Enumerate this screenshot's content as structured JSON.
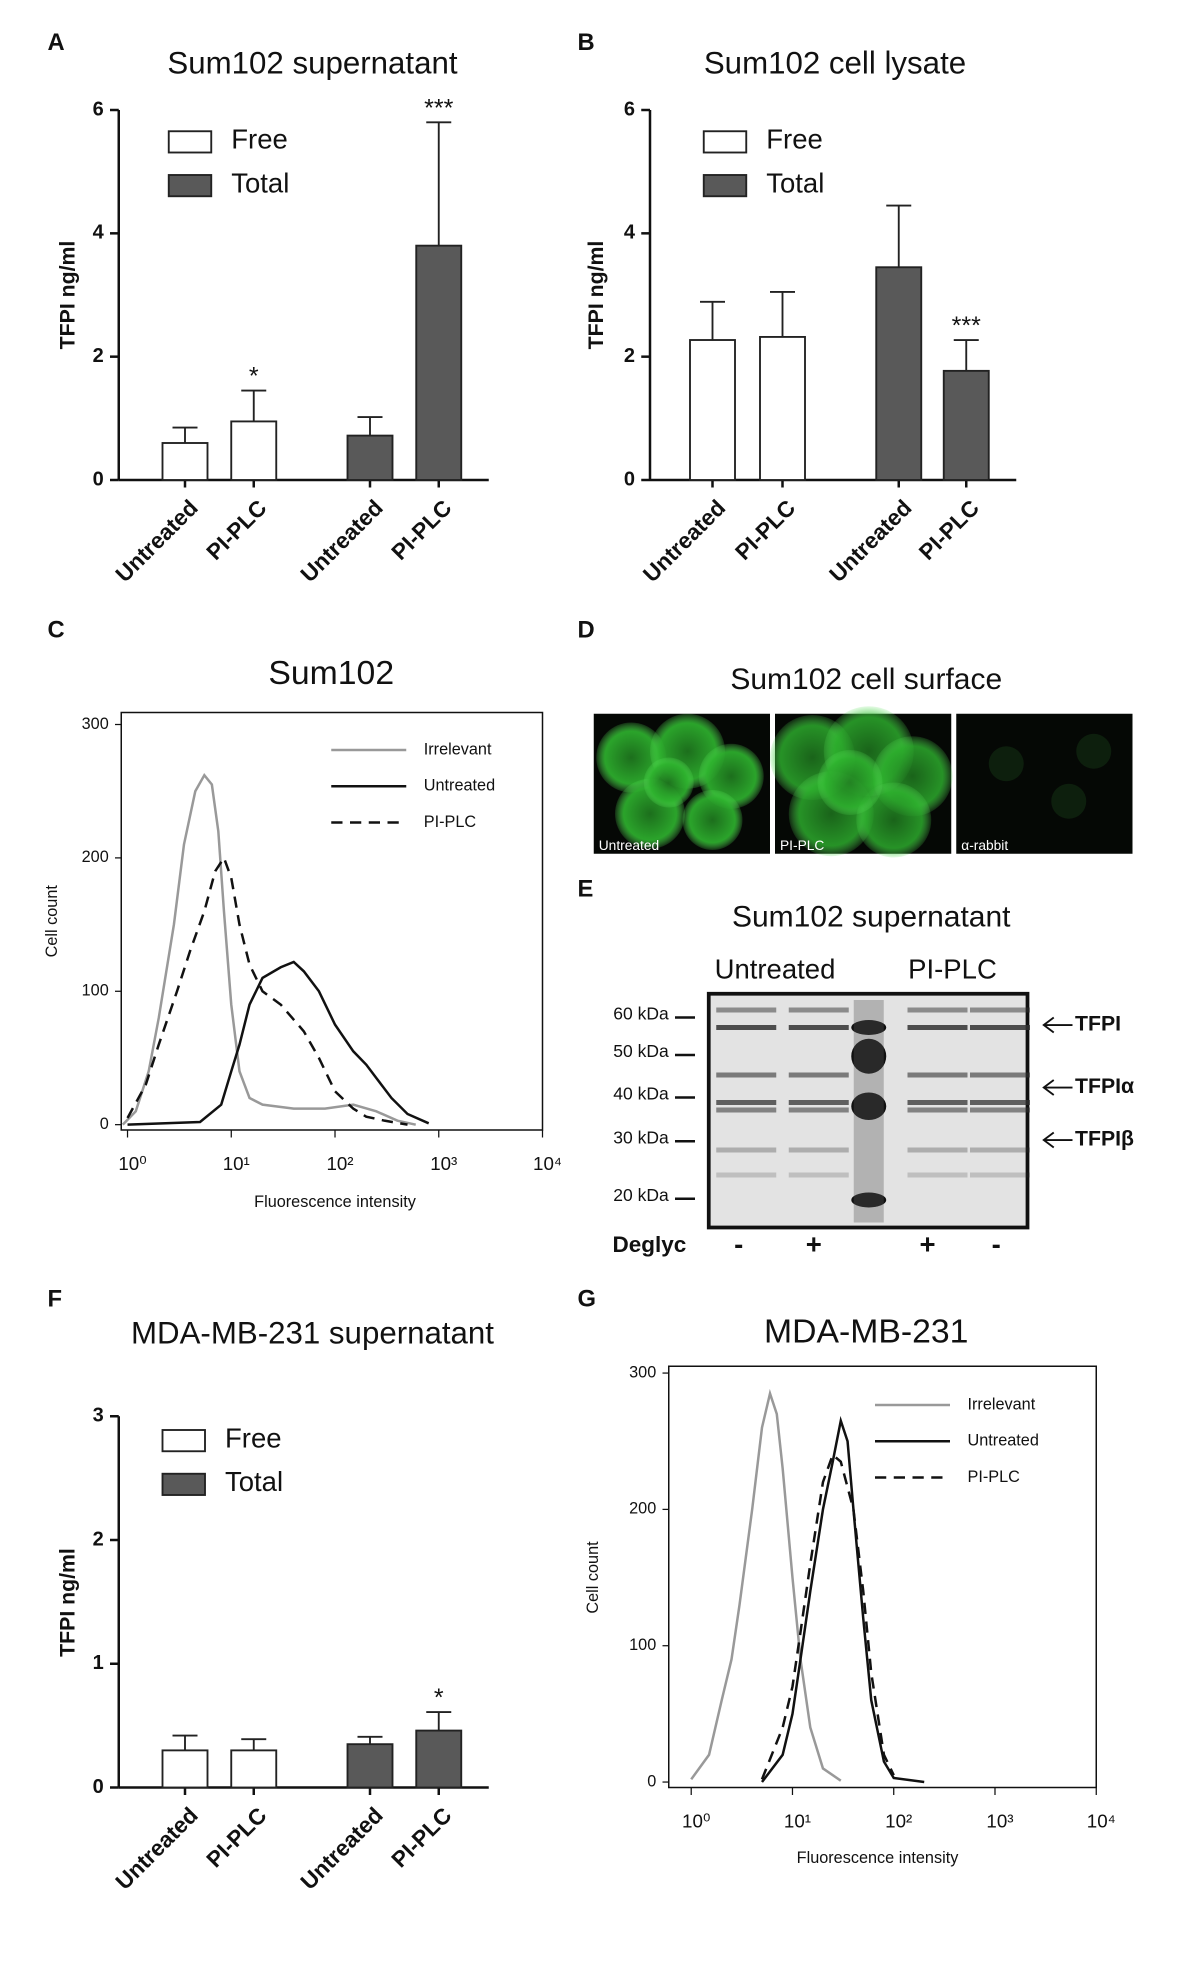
{
  "chart_data": [
    {
      "type": "bar",
      "panel_label": "A",
      "title": "Sum102 supernatant",
      "y_label": "TFPI ng/ml",
      "categories": [
        "Untreated",
        "PI-PLC",
        "Untreated",
        "PI-PLC"
      ],
      "series": [
        {
          "name": "Free",
          "color": "#ffffff",
          "values": [
            0.6,
            0.95,
            null,
            null
          ],
          "errors": [
            0.25,
            0.5,
            null,
            null
          ],
          "significance": [
            null,
            "*",
            null,
            null
          ]
        },
        {
          "name": "Total",
          "color": "#595959",
          "values": [
            null,
            null,
            0.72,
            3.8
          ],
          "errors": [
            null,
            null,
            0.3,
            2.0
          ],
          "significance": [
            null,
            null,
            null,
            "***"
          ]
        }
      ],
      "ylim": [
        0,
        6
      ],
      "yticks": [
        0,
        2,
        4,
        6
      ],
      "legend": "upper left"
    },
    {
      "type": "bar",
      "panel_label": "B",
      "title": "Sum102 cell lysate",
      "y_label": "TFPI ng/ml",
      "categories": [
        "Untreated",
        "PI-PLC",
        "Untreated",
        "PI-PLC"
      ],
      "series": [
        {
          "name": "Free",
          "color": "#ffffff",
          "values": [
            2.27,
            2.32,
            null,
            null
          ],
          "errors": [
            0.62,
            0.73,
            null,
            null
          ],
          "significance": [
            null,
            null,
            null,
            null
          ]
        },
        {
          "name": "Total",
          "color": "#595959",
          "values": [
            null,
            null,
            3.45,
            1.77
          ],
          "errors": [
            null,
            null,
            1.0,
            0.5
          ],
          "significance": [
            null,
            null,
            null,
            "***"
          ]
        }
      ],
      "ylim": [
        0,
        6
      ],
      "yticks": [
        0,
        2,
        4,
        6
      ],
      "legend": "upper left"
    },
    {
      "type": "line",
      "panel_label": "C",
      "title": "Sum102",
      "x_label": "Fluorescence intensity",
      "y_label": "Cell count",
      "xscale": "log",
      "xlim": [
        0.87,
        10000
      ],
      "xticks": [
        {
          "value": 1,
          "label": "10⁰"
        },
        {
          "value": 10,
          "label": "10¹"
        },
        {
          "value": 100,
          "label": "10²"
        },
        {
          "value": 1000,
          "label": "10³"
        },
        {
          "value": 10000,
          "label": "10⁴"
        }
      ],
      "ylim": [
        -4,
        309
      ],
      "yticks": [
        0,
        100,
        200,
        300
      ],
      "legend": "upper right",
      "series": [
        {
          "name": "Irrelevant",
          "color": "#999999",
          "line_style": "solid",
          "x": [
            0.9,
            1.2,
            1.6,
            2,
            2.8,
            3.5,
            4.5,
            5.5,
            6.5,
            7.5,
            8.5,
            10,
            12,
            15,
            20,
            40,
            80,
            150,
            250,
            400,
            600
          ],
          "values": [
            0,
            10,
            40,
            80,
            150,
            210,
            250,
            262,
            255,
            220,
            160,
            90,
            40,
            20,
            15,
            12,
            12,
            15,
            10,
            3,
            0
          ]
        },
        {
          "name": "Untreated",
          "color": "#111111",
          "line_style": "solid",
          "x": [
            1,
            5,
            8,
            10,
            12,
            15,
            20,
            30,
            40,
            50,
            70,
            100,
            150,
            200,
            250,
            350,
            500,
            800
          ],
          "values": [
            0,
            2,
            15,
            40,
            60,
            90,
            110,
            118,
            122,
            115,
            100,
            75,
            55,
            45,
            35,
            20,
            8,
            1
          ]
        },
        {
          "name": "PI-PLC",
          "color": "#111111",
          "line_style": "dashed",
          "x": [
            1,
            1.5,
            2,
            3,
            4,
            5.5,
            7,
            8.5,
            10,
            12,
            15,
            20,
            30,
            50,
            70,
            100,
            150,
            200,
            300,
            500
          ],
          "values": [
            5,
            30,
            60,
            100,
            130,
            160,
            190,
            200,
            185,
            150,
            120,
            100,
            90,
            70,
            50,
            25,
            12,
            6,
            3,
            0
          ]
        }
      ]
    },
    {
      "type": "bar",
      "panel_label": "F",
      "title": "MDA-MB-231 supernatant",
      "y_label": "TFPI ng/ml",
      "categories": [
        "Untreated",
        "PI-PLC",
        "Untreated",
        "PI-PLC"
      ],
      "series": [
        {
          "name": "Free",
          "color": "#ffffff",
          "values": [
            0.3,
            0.3,
            null,
            null
          ],
          "errors": [
            0.12,
            0.09,
            null,
            null
          ],
          "significance": [
            null,
            null,
            null,
            null
          ]
        },
        {
          "name": "Total",
          "color": "#595959",
          "values": [
            null,
            null,
            0.35,
            0.46
          ],
          "errors": [
            null,
            null,
            0.06,
            0.15
          ],
          "significance": [
            null,
            null,
            null,
            "*"
          ]
        }
      ],
      "ylim": [
        0,
        3
      ],
      "yticks": [
        0,
        1,
        2,
        3
      ],
      "legend": "upper left"
    },
    {
      "type": "line",
      "panel_label": "G",
      "title": "MDA-MB-231",
      "x_label": "Fluorescence intensity",
      "y_label": "Cell count",
      "xscale": "log",
      "xlim": [
        0.6,
        10000
      ],
      "xticks": [
        {
          "value": 1,
          "label": "10⁰"
        },
        {
          "value": 10,
          "label": "10¹"
        },
        {
          "value": 100,
          "label": "10²"
        },
        {
          "value": 1000,
          "label": "10³"
        },
        {
          "value": 10000,
          "label": "10⁴"
        }
      ],
      "ylim": [
        -4,
        305
      ],
      "yticks": [
        0,
        100,
        200,
        300
      ],
      "legend": "upper right",
      "series": [
        {
          "name": "Irrelevant",
          "color": "#999999",
          "line_style": "solid",
          "x": [
            1,
            1.5,
            2,
            2.5,
            3,
            4,
            5,
            6,
            7,
            8,
            10,
            12,
            15,
            20,
            30
          ],
          "values": [
            2,
            20,
            60,
            90,
            130,
            200,
            260,
            285,
            270,
            230,
            150,
            90,
            40,
            10,
            1
          ]
        },
        {
          "name": "Untreated",
          "color": "#111111",
          "line_style": "solid",
          "x": [
            5,
            8,
            10,
            12,
            15,
            20,
            25,
            30,
            35,
            40,
            50,
            60,
            80,
            100,
            200
          ],
          "values": [
            0,
            20,
            50,
            90,
            140,
            200,
            235,
            265,
            250,
            200,
            120,
            60,
            15,
            3,
            0
          ]
        },
        {
          "name": "PI-PLC",
          "color": "#111111",
          "line_style": "dashed",
          "x": [
            5,
            8,
            10,
            12,
            15,
            20,
            25,
            30,
            40,
            50,
            60,
            80,
            100
          ],
          "values": [
            2,
            40,
            70,
            110,
            160,
            220,
            240,
            235,
            200,
            140,
            80,
            20,
            5
          ]
        }
      ]
    }
  ],
  "microscopy": {
    "panel_label": "D",
    "title": "Sum102 cell surface",
    "labels": [
      "Untreated",
      "PI-PLC",
      "α-rabbit"
    ]
  },
  "western_blot": {
    "panel_label": "E",
    "title": "Sum102 supernatant",
    "group_labels": [
      "Untreated",
      "PI-PLC"
    ],
    "markers": [
      "60 kDa",
      "50 kDa",
      "40 kDa",
      "30 kDa",
      "20 kDa"
    ],
    "bands": [
      "TFPI",
      "TFPIα",
      "TFPIβ"
    ],
    "row_label": "Deglyc",
    "lane_labels": [
      "-",
      "+",
      "+",
      "-"
    ]
  }
}
